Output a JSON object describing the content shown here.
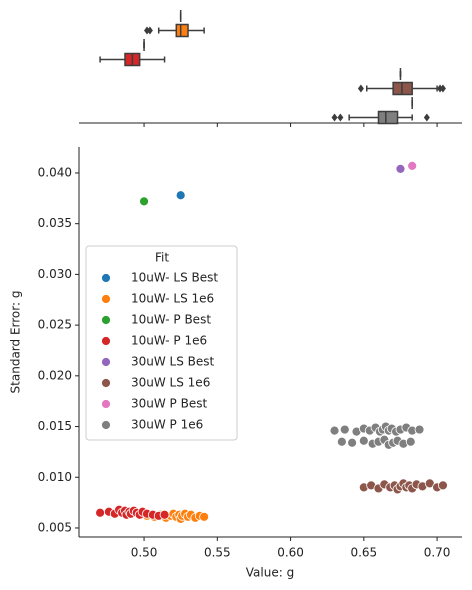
{
  "chart_data": {
    "type": "scatter",
    "xlabel": "Value: g",
    "ylabel": "Standard Error: g",
    "legend_title": "Fit",
    "legend": "upper left",
    "xlim": [
      0.4556,
      0.717
    ],
    "xticks": [
      {
        "value": 0.5,
        "label": "0.50"
      },
      0.55,
      {
        "value": 0.6,
        "label": "0.60"
      },
      0.65,
      {
        "value": 0.7,
        "label": "0.70"
      }
    ],
    "ylim": [
      0.00411,
      0.04256
    ],
    "yticks": [
      0.005,
      {
        "value": 0.01,
        "label": "0.010"
      },
      0.015,
      {
        "value": 0.02,
        "label": "0.020"
      },
      0.025,
      {
        "value": 0.03,
        "label": "0.030"
      },
      0.035,
      {
        "value": 0.04,
        "label": "0.040"
      }
    ],
    "series": [
      {
        "name": "10uW- LS Best",
        "color": "#1f77b4",
        "x": [
          0.525
        ],
        "values": [
          0.0378
        ],
        "box": {
          "whislo": 0.525,
          "q1": 0.525,
          "med": 0.525,
          "q3": 0.525,
          "whishi": 0.525,
          "fliers": []
        }
      },
      {
        "name": "10uW- LS 1e6",
        "color": "#ff7f0e",
        "x": [
          0.502,
          0.507,
          0.511,
          0.515,
          0.518,
          0.52,
          0.522,
          0.524,
          0.525,
          0.526,
          0.528,
          0.53,
          0.532,
          0.535,
          0.538,
          0.541
        ],
        "values": [
          0.0062,
          0.0061,
          0.0063,
          0.006,
          0.0062,
          0.0064,
          0.0061,
          0.0063,
          0.0059,
          0.0062,
          0.0064,
          0.0061,
          0.0063,
          0.006,
          0.0062,
          0.0061
        ],
        "box": {
          "whislo": 0.51,
          "q1": 0.522,
          "med": 0.525,
          "q3": 0.53,
          "whishi": 0.541,
          "fliers": [
            0.502,
            0.504
          ]
        }
      },
      {
        "name": "10uW- P Best",
        "color": "#2ca02c",
        "x": [
          0.5
        ],
        "values": [
          0.0372
        ],
        "box": {
          "whislo": 0.5,
          "q1": 0.5,
          "med": 0.5,
          "q3": 0.5,
          "whishi": 0.5,
          "fliers": []
        }
      },
      {
        "name": "10uW- P 1e6",
        "color": "#d62728",
        "x": [
          0.47,
          0.476,
          0.48,
          0.483,
          0.485,
          0.487,
          0.488,
          0.49,
          0.491,
          0.493,
          0.495,
          0.497,
          0.499,
          0.502,
          0.506,
          0.51,
          0.514
        ],
        "values": [
          0.0065,
          0.0066,
          0.0064,
          0.0068,
          0.0065,
          0.0067,
          0.0063,
          0.0066,
          0.0064,
          0.0067,
          0.0065,
          0.0063,
          0.0066,
          0.0064,
          0.0063,
          0.0062,
          0.0063
        ],
        "box": {
          "whislo": 0.47,
          "q1": 0.487,
          "med": 0.492,
          "q3": 0.497,
          "whishi": 0.514,
          "fliers": []
        }
      },
      {
        "name": "30uW LS Best",
        "color": "#9467bd",
        "x": [
          0.675
        ],
        "values": [
          0.0404
        ],
        "box": {
          "whislo": 0.675,
          "q1": 0.675,
          "med": 0.675,
          "q3": 0.675,
          "whishi": 0.675,
          "fliers": []
        }
      },
      {
        "name": "30uW LS 1e6",
        "color": "#8c564b",
        "x": [
          0.65,
          0.655,
          0.66,
          0.664,
          0.668,
          0.671,
          0.673,
          0.675,
          0.677,
          0.679,
          0.681,
          0.683,
          0.686,
          0.69,
          0.695,
          0.7,
          0.704
        ],
        "values": [
          0.009,
          0.0092,
          0.0089,
          0.0093,
          0.009,
          0.0092,
          0.0088,
          0.0091,
          0.0094,
          0.009,
          0.0092,
          0.0089,
          0.0093,
          0.0091,
          0.0094,
          0.009,
          0.0092
        ],
        "box": {
          "whislo": 0.652,
          "q1": 0.67,
          "med": 0.676,
          "q3": 0.683,
          "whishi": 0.7,
          "fliers": [
            0.648,
            0.702,
            0.704
          ]
        }
      },
      {
        "name": "30uW P Best",
        "color": "#e377c2",
        "x": [
          0.683
        ],
        "values": [
          0.0407
        ],
        "box": {
          "whislo": 0.683,
          "q1": 0.683,
          "med": 0.683,
          "q3": 0.683,
          "whishi": 0.683,
          "fliers": []
        }
      },
      {
        "name": "30uW P 1e6",
        "color": "#7f7f7f",
        "x": [
          0.63,
          0.637,
          0.645,
          0.65,
          0.654,
          0.658,
          0.661,
          0.663,
          0.665,
          0.667,
          0.669,
          0.672,
          0.675,
          0.679,
          0.683,
          0.688,
          0.635,
          0.642,
          0.65,
          0.656,
          0.66,
          0.664,
          0.667,
          0.67,
          0.673,
          0.677,
          0.682
        ],
        "values": [
          0.0146,
          0.0147,
          0.0145,
          0.0148,
          0.0146,
          0.0149,
          0.0145,
          0.0147,
          0.015,
          0.0146,
          0.0148,
          0.0145,
          0.0147,
          0.0149,
          0.0146,
          0.0147,
          0.0135,
          0.0134,
          0.0136,
          0.0133,
          0.0135,
          0.0137,
          0.0132,
          0.0134,
          0.0136,
          0.0133,
          0.0135
        ],
        "box": {
          "whislo": 0.64,
          "q1": 0.66,
          "med": 0.665,
          "q3": 0.673,
          "whishi": 0.683,
          "fliers": [
            0.63,
            0.634,
            0.693
          ]
        }
      }
    ]
  }
}
